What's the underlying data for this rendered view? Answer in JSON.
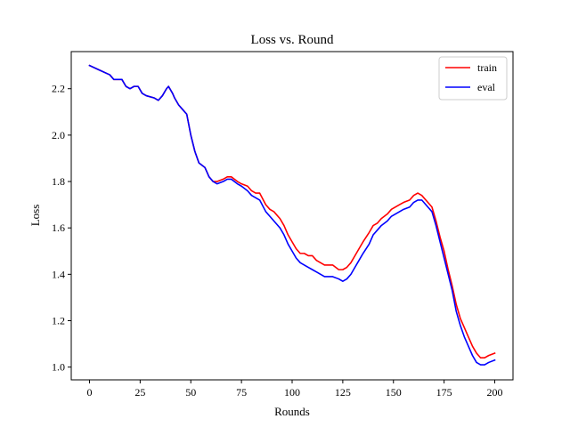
{
  "chart_data": {
    "type": "line",
    "title": "Loss vs. Round",
    "xlabel": "Rounds",
    "ylabel": "Loss",
    "xlim": [
      -9,
      209
    ],
    "ylim": [
      0.945,
      2.36
    ],
    "xticks": [
      0,
      25,
      50,
      75,
      100,
      125,
      150,
      175,
      200
    ],
    "yticks": [
      1.0,
      1.2,
      1.4,
      1.6,
      1.8,
      2.0,
      2.2
    ],
    "ytick_labels": [
      "1.0",
      "1.2",
      "1.4",
      "1.6",
      "1.8",
      "2.0",
      "2.2"
    ],
    "grid": false,
    "legend_position": "top-right",
    "series": [
      {
        "name": "train",
        "color": "#ff0000",
        "x": [
          0,
          5,
          10,
          12,
          16,
          18,
          20,
          22,
          24,
          26,
          28,
          32,
          34,
          36,
          38,
          39,
          41,
          42,
          44,
          46,
          48,
          50,
          52,
          54,
          57,
          59,
          61,
          63,
          66,
          68,
          70,
          73,
          75,
          78,
          80,
          82,
          84,
          87,
          89,
          91,
          94,
          96,
          98,
          100,
          102,
          104,
          106,
          108,
          110,
          112,
          114,
          116,
          118,
          120,
          123,
          125,
          127,
          129,
          131,
          133,
          135,
          138,
          140,
          142,
          144,
          147,
          149,
          151,
          153,
          155,
          158,
          160,
          162,
          164,
          165,
          167,
          169,
          171,
          173,
          175,
          177,
          179,
          181,
          183,
          185,
          187,
          189,
          191,
          193,
          195,
          197,
          200
        ],
        "y": [
          2.3,
          2.28,
          2.26,
          2.24,
          2.24,
          2.21,
          2.2,
          2.21,
          2.21,
          2.18,
          2.17,
          2.16,
          2.15,
          2.17,
          2.2,
          2.21,
          2.18,
          2.16,
          2.13,
          2.11,
          2.09,
          2.0,
          1.93,
          1.88,
          1.86,
          1.82,
          1.8,
          1.8,
          1.81,
          1.82,
          1.82,
          1.8,
          1.79,
          1.78,
          1.76,
          1.75,
          1.75,
          1.7,
          1.68,
          1.67,
          1.64,
          1.61,
          1.57,
          1.54,
          1.51,
          1.49,
          1.49,
          1.48,
          1.48,
          1.46,
          1.45,
          1.44,
          1.44,
          1.44,
          1.42,
          1.42,
          1.43,
          1.45,
          1.48,
          1.51,
          1.54,
          1.58,
          1.61,
          1.62,
          1.64,
          1.66,
          1.68,
          1.69,
          1.7,
          1.71,
          1.72,
          1.74,
          1.75,
          1.74,
          1.73,
          1.71,
          1.69,
          1.63,
          1.56,
          1.5,
          1.42,
          1.35,
          1.27,
          1.21,
          1.17,
          1.13,
          1.09,
          1.06,
          1.04,
          1.04,
          1.05,
          1.06
        ],
        "end_x": 200,
        "end_y": 1.06
      },
      {
        "name": "eval",
        "color": "#0000ff",
        "x": [
          0,
          5,
          10,
          12,
          16,
          18,
          20,
          22,
          24,
          26,
          28,
          32,
          34,
          36,
          38,
          39,
          41,
          42,
          44,
          46,
          48,
          50,
          52,
          54,
          57,
          59,
          61,
          63,
          66,
          68,
          70,
          73,
          75,
          78,
          80,
          82,
          84,
          87,
          89,
          91,
          94,
          96,
          98,
          100,
          102,
          104,
          106,
          108,
          110,
          112,
          114,
          116,
          118,
          120,
          123,
          125,
          127,
          129,
          131,
          133,
          135,
          138,
          140,
          142,
          144,
          147,
          149,
          151,
          153,
          155,
          158,
          160,
          162,
          164,
          165,
          167,
          169,
          171,
          173,
          175,
          177,
          179,
          181,
          183,
          185,
          187,
          189,
          191,
          193,
          195,
          197,
          200
        ],
        "y": [
          2.3,
          2.28,
          2.26,
          2.24,
          2.24,
          2.21,
          2.2,
          2.21,
          2.21,
          2.18,
          2.17,
          2.16,
          2.15,
          2.17,
          2.2,
          2.21,
          2.18,
          2.16,
          2.13,
          2.11,
          2.09,
          2.0,
          1.93,
          1.88,
          1.86,
          1.82,
          1.8,
          1.79,
          1.8,
          1.81,
          1.81,
          1.79,
          1.78,
          1.76,
          1.74,
          1.73,
          1.72,
          1.67,
          1.65,
          1.63,
          1.6,
          1.57,
          1.53,
          1.5,
          1.47,
          1.45,
          1.44,
          1.43,
          1.42,
          1.41,
          1.4,
          1.39,
          1.39,
          1.39,
          1.38,
          1.37,
          1.38,
          1.4,
          1.43,
          1.46,
          1.49,
          1.53,
          1.57,
          1.59,
          1.61,
          1.63,
          1.65,
          1.66,
          1.67,
          1.68,
          1.69,
          1.71,
          1.72,
          1.72,
          1.71,
          1.69,
          1.67,
          1.61,
          1.54,
          1.47,
          1.4,
          1.33,
          1.24,
          1.18,
          1.13,
          1.09,
          1.05,
          1.02,
          1.01,
          1.01,
          1.02,
          1.03
        ],
        "end_x": 200,
        "end_y": 1.03
      }
    ]
  }
}
